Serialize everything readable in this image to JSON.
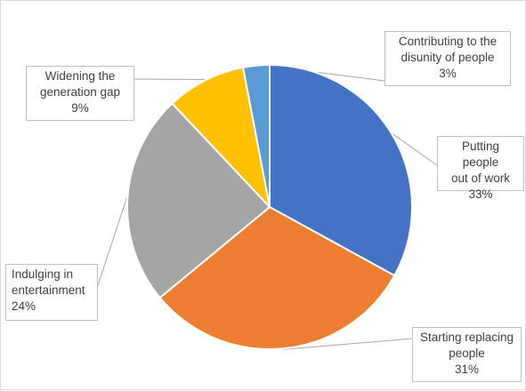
{
  "chart_data": {
    "type": "pie",
    "title": "",
    "start_angle_deg": 0,
    "direction": "clockwise",
    "slices": [
      {
        "label": "Putting people out of work",
        "label_lines": [
          "Putting people",
          "out of work"
        ],
        "value": 33,
        "value_label": "33%",
        "color": "#4472c4"
      },
      {
        "label": "Starting replacing people",
        "label_lines": [
          "Starting replacing",
          "people"
        ],
        "value": 31,
        "value_label": "31%",
        "color": "#ed7d31"
      },
      {
        "label": "Indulging in entertainment",
        "label_lines": [
          "Indulging in",
          "entertainment"
        ],
        "value": 24,
        "value_label": "24%",
        "color": "#a5a5a5"
      },
      {
        "label": "Widening the generation gap",
        "label_lines": [
          "Widening the",
          "generation gap"
        ],
        "value": 9,
        "value_label": "9%",
        "color": "#ffc000"
      },
      {
        "label": "Contributing to the disunity of people",
        "label_lines": [
          "Contributing to the",
          "disunity of people"
        ],
        "value": 3,
        "value_label": "3%",
        "color": "#5b9bd5"
      }
    ],
    "legend": "none",
    "data_labels": "callouts with leader lines"
  },
  "colors": {
    "leader_line": "#a6a6a6",
    "slice_border": "#ffffff",
    "text": "#404040"
  }
}
